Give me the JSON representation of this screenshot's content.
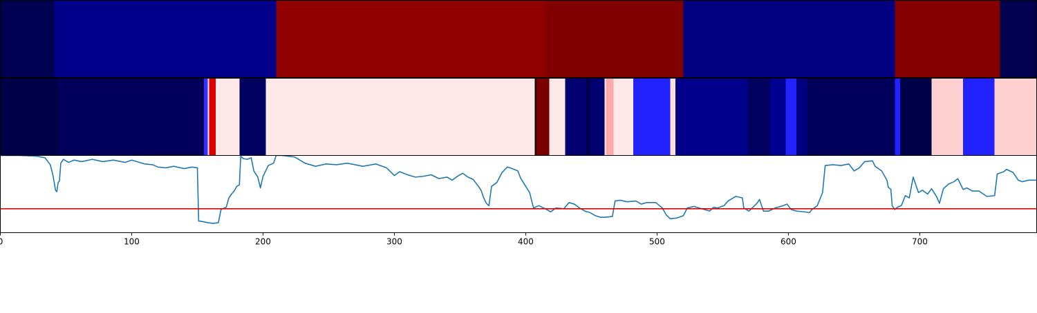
{
  "chart_data": [
    {
      "type": "heatmap",
      "panel": "top",
      "x_range": [
        0,
        789
      ],
      "segments": [
        {
          "start": 0,
          "end": 41,
          "color": "#000050"
        },
        {
          "start": 41,
          "end": 210,
          "color": "#00008a"
        },
        {
          "start": 210,
          "end": 415,
          "color": "#900000"
        },
        {
          "start": 415,
          "end": 520,
          "color": "#800000"
        },
        {
          "start": 520,
          "end": 681,
          "color": "#000080"
        },
        {
          "start": 681,
          "end": 761,
          "color": "#840000"
        },
        {
          "start": 761,
          "end": 789,
          "color": "#00004e"
        }
      ]
    },
    {
      "type": "heatmap",
      "panel": "middle",
      "x_range": [
        0,
        789
      ],
      "segments": [
        {
          "start": 0,
          "end": 44,
          "color": "#000048"
        },
        {
          "start": 44,
          "end": 155,
          "color": "#00005a"
        },
        {
          "start": 155,
          "end": 158,
          "color": "#3333ff"
        },
        {
          "start": 158,
          "end": 159,
          "color": "#ffe0e0"
        },
        {
          "start": 159,
          "end": 164,
          "color": "#dd0000"
        },
        {
          "start": 164,
          "end": 182,
          "color": "#ffe8e8"
        },
        {
          "start": 182,
          "end": 202,
          "color": "#000060"
        },
        {
          "start": 202,
          "end": 407,
          "color": "#ffe8e8"
        },
        {
          "start": 407,
          "end": 408,
          "color": "#000000"
        },
        {
          "start": 408,
          "end": 418,
          "color": "#7a0000"
        },
        {
          "start": 418,
          "end": 430,
          "color": "#ffe8e8"
        },
        {
          "start": 430,
          "end": 446,
          "color": "#000070"
        },
        {
          "start": 446,
          "end": 449,
          "color": "#00004a"
        },
        {
          "start": 449,
          "end": 460,
          "color": "#000070"
        },
        {
          "start": 460,
          "end": 461,
          "color": "#ffe8e8"
        },
        {
          "start": 461,
          "end": 467,
          "color": "#ffaaaa"
        },
        {
          "start": 467,
          "end": 482,
          "color": "#ffe8e8"
        },
        {
          "start": 482,
          "end": 510,
          "color": "#2222ff"
        },
        {
          "start": 510,
          "end": 514,
          "color": "#ffe0e0"
        },
        {
          "start": 514,
          "end": 569,
          "color": "#00008a"
        },
        {
          "start": 569,
          "end": 586,
          "color": "#000060"
        },
        {
          "start": 586,
          "end": 598,
          "color": "#000090"
        },
        {
          "start": 598,
          "end": 606,
          "color": "#2222ff"
        },
        {
          "start": 606,
          "end": 614,
          "color": "#000080"
        },
        {
          "start": 614,
          "end": 681,
          "color": "#00005a"
        },
        {
          "start": 681,
          "end": 685,
          "color": "#2222ff"
        },
        {
          "start": 685,
          "end": 709,
          "color": "#000048"
        },
        {
          "start": 709,
          "end": 733,
          "color": "#ffd0d0"
        },
        {
          "start": 733,
          "end": 757,
          "color": "#2222ff"
        },
        {
          "start": 757,
          "end": 789,
          "color": "#ffd0d0"
        }
      ]
    },
    {
      "type": "line",
      "panel": "bottom",
      "xlim": [
        0,
        789
      ],
      "ylim": [
        0,
        1
      ],
      "xticks": [
        0,
        100,
        200,
        300,
        400,
        500,
        600,
        700
      ],
      "threshold": {
        "y": 0.31,
        "color": "#dd0000"
      },
      "series": [
        {
          "color": "#1f77b4",
          "points": [
            [
              0,
              1.0
            ],
            [
              14,
              1.0
            ],
            [
              28,
              0.99
            ],
            [
              34,
              0.97
            ],
            [
              38,
              0.88
            ],
            [
              40,
              0.75
            ],
            [
              42,
              0.55
            ],
            [
              43,
              0.53
            ],
            [
              44,
              0.65
            ],
            [
              45,
              0.67
            ],
            [
              46,
              0.9
            ],
            [
              48,
              0.95
            ],
            [
              52,
              0.91
            ],
            [
              56,
              0.94
            ],
            [
              62,
              0.92
            ],
            [
              70,
              0.95
            ],
            [
              78,
              0.92
            ],
            [
              86,
              0.94
            ],
            [
              95,
              0.91
            ],
            [
              100,
              0.94
            ],
            [
              106,
              0.91
            ],
            [
              110,
              0.89
            ],
            [
              116,
              0.88
            ],
            [
              120,
              0.85
            ],
            [
              126,
              0.84
            ],
            [
              132,
              0.86
            ],
            [
              140,
              0.83
            ],
            [
              146,
              0.85
            ],
            [
              150,
              0.84
            ],
            [
              151,
              0.15
            ],
            [
              152,
              0.15
            ],
            [
              158,
              0.13
            ],
            [
              162,
              0.12
            ],
            [
              166,
              0.13
            ],
            [
              168,
              0.3
            ],
            [
              172,
              0.33
            ],
            [
              174,
              0.45
            ],
            [
              176,
              0.5
            ],
            [
              178,
              0.54
            ],
            [
              180,
              0.6
            ],
            [
              182,
              0.62
            ],
            [
              183,
              0.99
            ],
            [
              185,
              0.96
            ],
            [
              188,
              0.95
            ],
            [
              191,
              0.97
            ],
            [
              193,
              0.8
            ],
            [
              196,
              0.72
            ],
            [
              198,
              0.58
            ],
            [
              200,
              0.73
            ],
            [
              202,
              0.8
            ],
            [
              204,
              0.87
            ],
            [
              208,
              0.9
            ],
            [
              210,
              1.0
            ],
            [
              214,
              1.0
            ],
            [
              224,
              0.98
            ],
            [
              232,
              0.9
            ],
            [
              240,
              0.86
            ],
            [
              248,
              0.89
            ],
            [
              256,
              0.88
            ],
            [
              264,
              0.9
            ],
            [
              276,
              0.86
            ],
            [
              286,
              0.89
            ],
            [
              294,
              0.84
            ],
            [
              300,
              0.74
            ],
            [
              304,
              0.79
            ],
            [
              310,
              0.75
            ],
            [
              316,
              0.72
            ],
            [
              322,
              0.73
            ],
            [
              328,
              0.75
            ],
            [
              334,
              0.7
            ],
            [
              340,
              0.72
            ],
            [
              344,
              0.68
            ],
            [
              348,
              0.73
            ],
            [
              352,
              0.77
            ],
            [
              356,
              0.72
            ],
            [
              360,
              0.69
            ],
            [
              364,
              0.6
            ],
            [
              366,
              0.55
            ],
            [
              368,
              0.45
            ],
            [
              370,
              0.38
            ],
            [
              372,
              0.35
            ],
            [
              374,
              0.6
            ],
            [
              378,
              0.65
            ],
            [
              382,
              0.78
            ],
            [
              386,
              0.85
            ],
            [
              388,
              0.84
            ],
            [
              394,
              0.8
            ],
            [
              396,
              0.71
            ],
            [
              400,
              0.6
            ],
            [
              403,
              0.52
            ],
            [
              405,
              0.38
            ],
            [
              406,
              0.32
            ],
            [
              410,
              0.35
            ],
            [
              416,
              0.3
            ],
            [
              419,
              0.27
            ],
            [
              423,
              0.32
            ],
            [
              429,
              0.31
            ],
            [
              433,
              0.39
            ],
            [
              437,
              0.37
            ],
            [
              441,
              0.32
            ],
            [
              445,
              0.28
            ],
            [
              449,
              0.26
            ],
            [
              453,
              0.22
            ],
            [
              457,
              0.2
            ],
            [
              461,
              0.2
            ],
            [
              466,
              0.21
            ],
            [
              468,
              0.41
            ],
            [
              472,
              0.42
            ],
            [
              477,
              0.4
            ],
            [
              484,
              0.41
            ],
            [
              488,
              0.37
            ],
            [
              492,
              0.39
            ],
            [
              499,
              0.39
            ],
            [
              504,
              0.32
            ],
            [
              507,
              0.23
            ],
            [
              510,
              0.18
            ],
            [
              515,
              0.19
            ],
            [
              520,
              0.22
            ],
            [
              523,
              0.32
            ],
            [
              528,
              0.34
            ],
            [
              532,
              0.32
            ],
            [
              536,
              0.3
            ],
            [
              540,
              0.28
            ],
            [
              543,
              0.33
            ],
            [
              546,
              0.32
            ],
            [
              551,
              0.35
            ],
            [
              554,
              0.41
            ],
            [
              560,
              0.47
            ],
            [
              565,
              0.45
            ],
            [
              566,
              0.32
            ],
            [
              570,
              0.28
            ],
            [
              576,
              0.38
            ],
            [
              578,
              0.43
            ],
            [
              581,
              0.28
            ],
            [
              585,
              0.28
            ],
            [
              590,
              0.32
            ],
            [
              596,
              0.35
            ],
            [
              599,
              0.37
            ],
            [
              602,
              0.3
            ],
            [
              606,
              0.28
            ],
            [
              612,
              0.27
            ],
            [
              616,
              0.26
            ],
            [
              618,
              0.3
            ],
            [
              622,
              0.35
            ],
            [
              626,
              0.52
            ],
            [
              628,
              0.87
            ],
            [
              634,
              0.88
            ],
            [
              640,
              0.87
            ],
            [
              646,
              0.89
            ],
            [
              650,
              0.8
            ],
            [
              654,
              0.84
            ],
            [
              658,
              0.92
            ],
            [
              664,
              0.93
            ],
            [
              666,
              0.86
            ],
            [
              671,
              0.8
            ],
            [
              675,
              0.68
            ],
            [
              676,
              0.59
            ],
            [
              678,
              0.56
            ],
            [
              679,
              0.35
            ],
            [
              681,
              0.3
            ],
            [
              683,
              0.33
            ],
            [
              686,
              0.35
            ],
            [
              689,
              0.48
            ],
            [
              692,
              0.45
            ],
            [
              695,
              0.72
            ],
            [
              699,
              0.52
            ],
            [
              702,
              0.55
            ],
            [
              706,
              0.5
            ],
            [
              709,
              0.57
            ],
            [
              713,
              0.46
            ],
            [
              715,
              0.38
            ],
            [
              718,
              0.57
            ],
            [
              722,
              0.63
            ],
            [
              726,
              0.66
            ],
            [
              729,
              0.7
            ],
            [
              733,
              0.56
            ],
            [
              736,
              0.58
            ],
            [
              740,
              0.54
            ],
            [
              745,
              0.54
            ],
            [
              751,
              0.47
            ],
            [
              757,
              0.48
            ],
            [
              759,
              0.76
            ],
            [
              764,
              0.79
            ],
            [
              766,
              0.82
            ],
            [
              771,
              0.78
            ],
            [
              775,
              0.68
            ],
            [
              778,
              0.66
            ],
            [
              783,
              0.68
            ],
            [
              789,
              0.68
            ]
          ]
        }
      ]
    }
  ]
}
